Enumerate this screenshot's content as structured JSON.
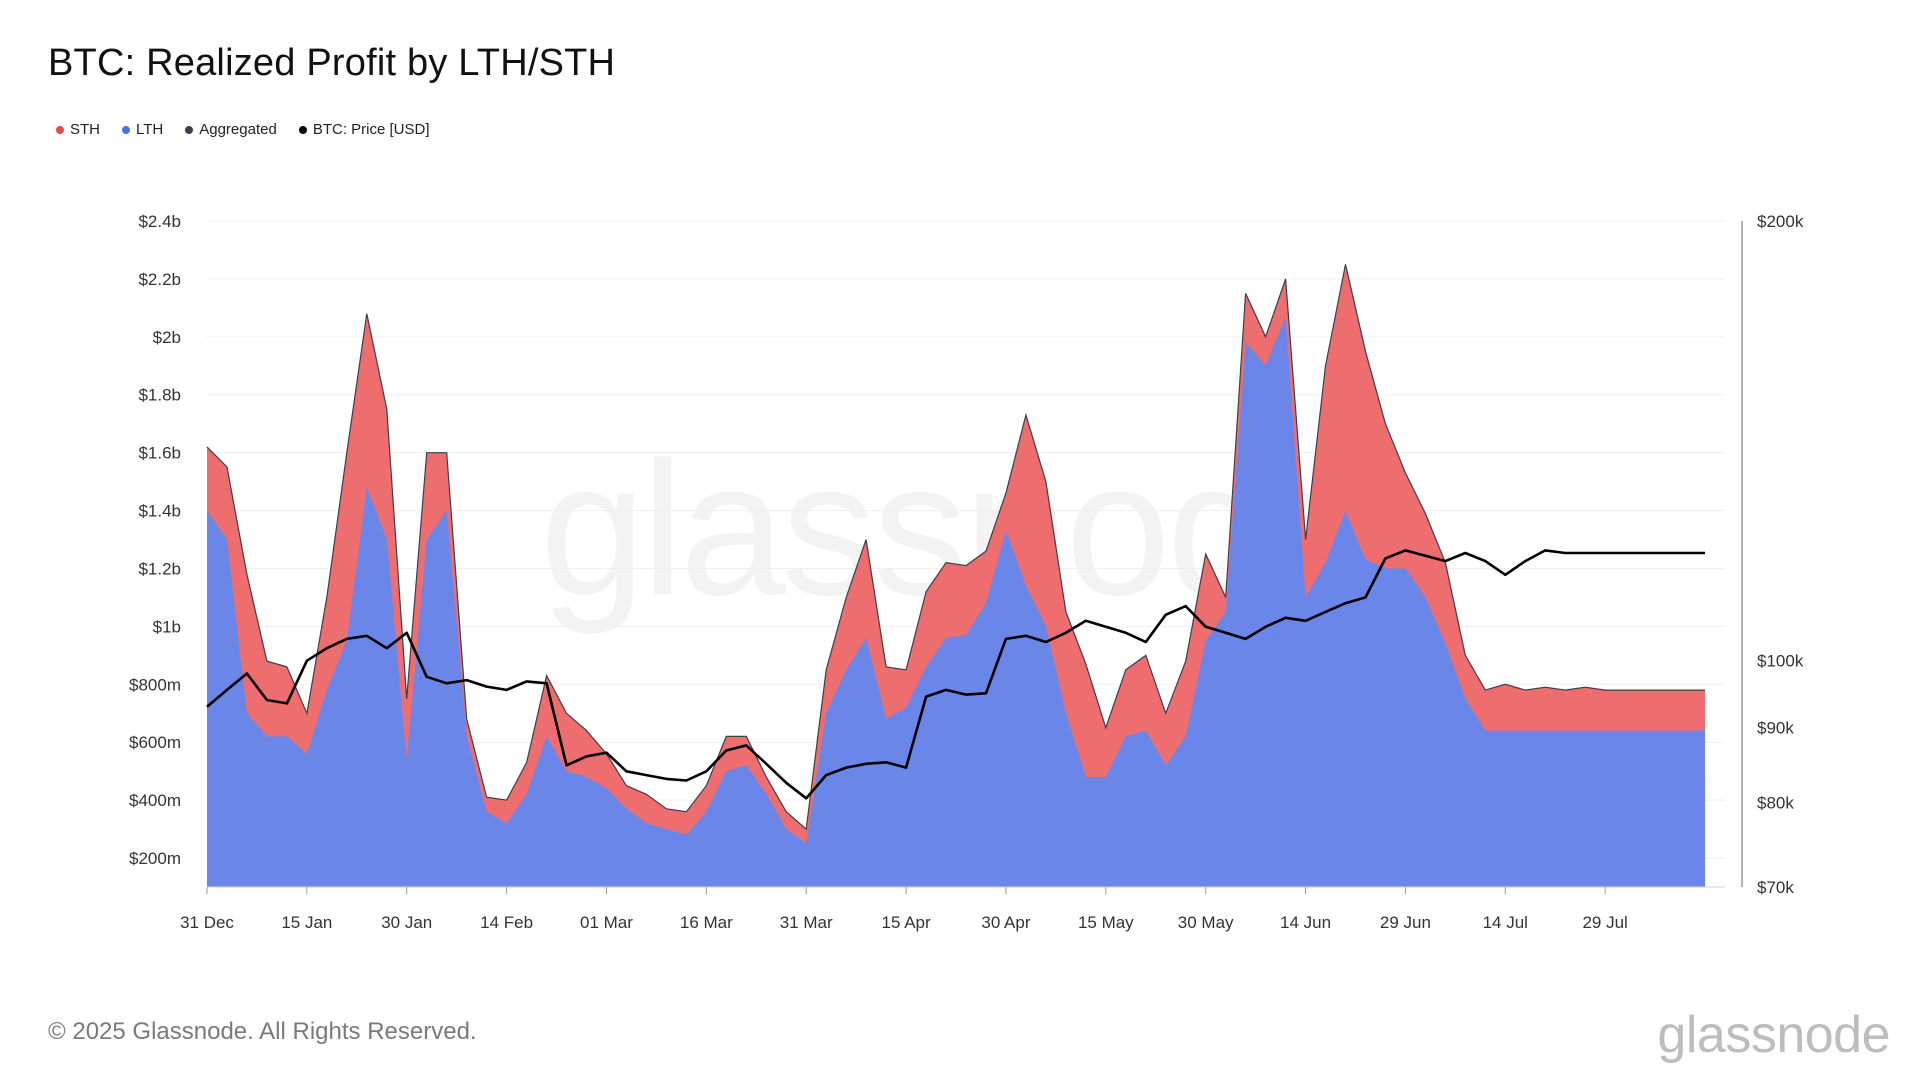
{
  "title": "BTC: Realized Profit by LTH/STH",
  "legend": [
    {
      "label": "STH",
      "color": "#e8474c"
    },
    {
      "label": "LTH",
      "color": "#4a6fe3"
    },
    {
      "label": "Aggregated",
      "color": "#3b3f4a"
    },
    {
      "label": "BTC: Price [USD]",
      "color": "#000000"
    }
  ],
  "footer": {
    "copyright": "© 2025 Glassnode. All Rights Reserved.",
    "logo": "glassnode"
  },
  "watermark": "glassnode",
  "chart_data": {
    "type": "area",
    "x_label_ticks": [
      "31 Dec",
      "15 Jan",
      "30 Jan",
      "14 Feb",
      "01 Mar",
      "16 Mar",
      "31 Mar",
      "15 Apr",
      "30 Apr",
      "15 May",
      "30 May",
      "14 Jun",
      "29 Jun",
      "14 Jul",
      "29 Jul"
    ],
    "y_left": {
      "min": 100000000,
      "max": 2400000000,
      "ticks": [
        {
          "v": 200000000,
          "label": "$200m"
        },
        {
          "v": 400000000,
          "label": "$400m"
        },
        {
          "v": 600000000,
          "label": "$600m"
        },
        {
          "v": 800000000,
          "label": "$800m"
        },
        {
          "v": 1000000000,
          "label": "$1b"
        },
        {
          "v": 1200000000,
          "label": "$1.2b"
        },
        {
          "v": 1400000000,
          "label": "$1.4b"
        },
        {
          "v": 1600000000,
          "label": "$1.6b"
        },
        {
          "v": 1800000000,
          "label": "$1.8b"
        },
        {
          "v": 2000000000,
          "label": "$2b"
        },
        {
          "v": 2200000000,
          "label": "$2.2b"
        },
        {
          "v": 2400000000,
          "label": "$2.4b"
        }
      ]
    },
    "y_right": {
      "scale": "log",
      "min": 70000,
      "max": 200000,
      "ticks": [
        {
          "v": 70000,
          "label": "$70k"
        },
        {
          "v": 80000,
          "label": "$80k"
        },
        {
          "v": 90000,
          "label": "$90k"
        },
        {
          "v": 100000,
          "label": "$100k"
        },
        {
          "v": 200000,
          "label": "$200k"
        }
      ]
    },
    "grid": true,
    "legend_position": "top-left",
    "series_colors": {
      "sth": "#ee6d6f",
      "lth": "#6a86e8",
      "aggregated": "#3b3f4a",
      "price": "#000000"
    },
    "x_dates": [
      "2024-12-31",
      "2025-01-03",
      "2025-01-06",
      "2025-01-09",
      "2025-01-12",
      "2025-01-15",
      "2025-01-18",
      "2025-01-21",
      "2025-01-24",
      "2025-01-27",
      "2025-01-30",
      "2025-02-02",
      "2025-02-05",
      "2025-02-08",
      "2025-02-11",
      "2025-02-14",
      "2025-02-17",
      "2025-02-20",
      "2025-02-23",
      "2025-02-26",
      "2025-03-01",
      "2025-03-04",
      "2025-03-07",
      "2025-03-10",
      "2025-03-13",
      "2025-03-16",
      "2025-03-19",
      "2025-03-22",
      "2025-03-25",
      "2025-03-28",
      "2025-03-31",
      "2025-04-03",
      "2025-04-06",
      "2025-04-09",
      "2025-04-12",
      "2025-04-15",
      "2025-04-18",
      "2025-04-21",
      "2025-04-24",
      "2025-04-27",
      "2025-04-30",
      "2025-05-03",
      "2025-05-06",
      "2025-05-09",
      "2025-05-12",
      "2025-05-15",
      "2025-05-18",
      "2025-05-21",
      "2025-05-24",
      "2025-05-27",
      "2025-05-30",
      "2025-06-02",
      "2025-06-05",
      "2025-06-08",
      "2025-06-11",
      "2025-06-14",
      "2025-06-17",
      "2025-06-20",
      "2025-06-23",
      "2025-06-26",
      "2025-06-29",
      "2025-07-02",
      "2025-07-05",
      "2025-07-08",
      "2025-07-11",
      "2025-07-14",
      "2025-07-17",
      "2025-07-20",
      "2025-07-23",
      "2025-07-26",
      "2025-07-29",
      "2025-08-01",
      "2025-08-04",
      "2025-08-07",
      "2025-08-10",
      "2025-08-13"
    ],
    "aggregated": [
      1620000000,
      1550000000,
      1180000000,
      880000000,
      860000000,
      700000000,
      1100000000,
      1600000000,
      2080000000,
      1750000000,
      750000000,
      1600000000,
      1600000000,
      680000000,
      410000000,
      400000000,
      530000000,
      830000000,
      700000000,
      640000000,
      560000000,
      450000000,
      420000000,
      370000000,
      360000000,
      450000000,
      620000000,
      620000000,
      480000000,
      360000000,
      300000000,
      850000000,
      1100000000,
      1300000000,
      860000000,
      850000000,
      1120000000,
      1220000000,
      1210000000,
      1260000000,
      1460000000,
      1730000000,
      1500000000,
      1050000000,
      870000000,
      650000000,
      850000000,
      900000000,
      700000000,
      880000000,
      1250000000,
      1100000000,
      2150000000,
      2000000000,
      2200000000,
      1300000000,
      1900000000,
      2250000000,
      1950000000,
      1700000000,
      1530000000,
      1390000000,
      1220000000,
      900000000,
      780000000,
      800000000,
      780000000,
      790000000,
      780000000,
      790000000,
      780000000,
      780000000,
      780000000,
      780000000,
      780000000,
      780000000
    ],
    "lth": [
      1400000000,
      1300000000,
      700000000,
      620000000,
      620000000,
      560000000,
      780000000,
      950000000,
      1480000000,
      1300000000,
      540000000,
      1300000000,
      1400000000,
      620000000,
      360000000,
      320000000,
      420000000,
      620000000,
      500000000,
      480000000,
      440000000,
      370000000,
      320000000,
      300000000,
      280000000,
      360000000,
      500000000,
      520000000,
      420000000,
      300000000,
      250000000,
      700000000,
      850000000,
      960000000,
      680000000,
      720000000,
      860000000,
      960000000,
      970000000,
      1080000000,
      1330000000,
      1140000000,
      1000000000,
      700000000,
      480000000,
      480000000,
      620000000,
      640000000,
      520000000,
      620000000,
      950000000,
      1050000000,
      1980000000,
      1900000000,
      2070000000,
      1100000000,
      1220000000,
      1400000000,
      1230000000,
      1200000000,
      1200000000,
      1100000000,
      940000000,
      750000000,
      640000000,
      640000000,
      640000000,
      640000000,
      640000000,
      640000000,
      640000000,
      640000000,
      640000000,
      640000000,
      640000000,
      640000000
    ],
    "price": [
      93000,
      95500,
      98000,
      94000,
      93500,
      100000,
      102000,
      103500,
      104000,
      102000,
      104500,
      97500,
      96500,
      97000,
      96000,
      95500,
      96800,
      96500,
      84800,
      86000,
      86500,
      84000,
      83500,
      83000,
      82800,
      84000,
      86800,
      87500,
      85000,
      82500,
      80500,
      83500,
      84500,
      85000,
      85200,
      84500,
      94500,
      95500,
      94800,
      95000,
      103500,
      104000,
      103000,
      104500,
      106500,
      105500,
      104500,
      103000,
      107500,
      109000,
      105500,
      104500,
      103500,
      105500,
      107000,
      106500,
      108000,
      109500,
      110500,
      117500,
      119000,
      118000,
      117000,
      118500,
      117000,
      114500,
      117000,
      119000,
      118500,
      118500,
      118500,
      118500,
      118500,
      118500,
      118500,
      118500
    ]
  }
}
